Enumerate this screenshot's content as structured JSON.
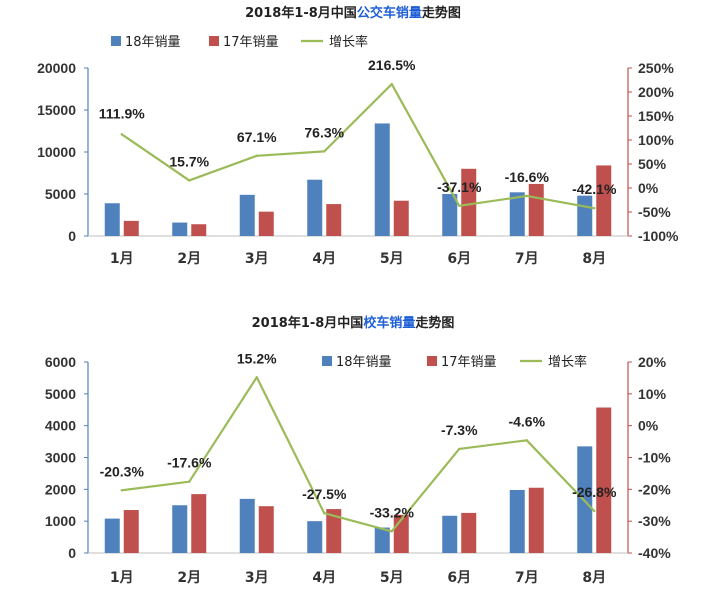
{
  "chart_data": [
    {
      "type": "bar",
      "title_parts": [
        {
          "text": "2018年1-8月中国",
          "color": "#222222"
        },
        {
          "text": "公交车销量",
          "color": "#1f5fd6"
        },
        {
          "text": "走势图",
          "color": "#222222"
        }
      ],
      "categories": [
        "1月",
        "2月",
        "3月",
        "4月",
        "5月",
        "6月",
        "7月",
        "8月"
      ],
      "series": [
        {
          "name": "18年销量",
          "type": "bar",
          "color": "#4f81bd",
          "values": [
            3900,
            1600,
            4900,
            6700,
            13400,
            5000,
            5200,
            4800
          ]
        },
        {
          "name": "17年销量",
          "type": "bar",
          "color": "#c0504d",
          "values": [
            1800,
            1400,
            2900,
            3800,
            4200,
            8000,
            6200,
            8400
          ]
        },
        {
          "name": "增长率",
          "type": "line",
          "axis": "right",
          "color": "#9bbb59",
          "values": [
            111.9,
            15.7,
            67.1,
            76.3,
            216.5,
            -37.1,
            -16.6,
            -42.1
          ]
        }
      ],
      "data_labels": [
        "111.9%",
        "15.7%",
        "67.1%",
        "76.3%",
        "216.5%",
        "-37.1%",
        "-16.6%",
        "-42.1%"
      ],
      "ylim_left": [
        0,
        20000
      ],
      "yticks_left": [
        "0",
        "5000",
        "10000",
        "15000",
        "20000"
      ],
      "ylim_right": [
        -100,
        250
      ],
      "yticks_right": [
        "-100%",
        "-50%",
        "0%",
        "50%",
        "100%",
        "150%",
        "200%",
        "250%"
      ],
      "legend_position": "top"
    },
    {
      "type": "bar",
      "title_parts": [
        {
          "text": "2018年1-8月中国",
          "color": "#222222"
        },
        {
          "text": "校车销量",
          "color": "#1f5fd6"
        },
        {
          "text": "走势图",
          "color": "#222222"
        }
      ],
      "categories": [
        "1月",
        "2月",
        "3月",
        "4月",
        "5月",
        "6月",
        "7月",
        "8月"
      ],
      "series": [
        {
          "name": "18年销量",
          "type": "bar",
          "color": "#4f81bd",
          "values": [
            1080,
            1500,
            1700,
            1000,
            800,
            1170,
            1980,
            3350
          ]
        },
        {
          "name": "17年销量",
          "type": "bar",
          "color": "#c0504d",
          "values": [
            1350,
            1850,
            1470,
            1380,
            1200,
            1260,
            2050,
            4570
          ]
        },
        {
          "name": "增长率",
          "type": "line",
          "axis": "right",
          "color": "#9bbb59",
          "values": [
            -20.3,
            -17.6,
            15.2,
            -27.5,
            -33.2,
            -7.3,
            -4.6,
            -26.8
          ]
        }
      ],
      "data_labels": [
        "-20.3%",
        "-17.6%",
        "15.2%",
        "-27.5%",
        "-33.2%",
        "-7.3%",
        "-4.6%",
        "-26.8%"
      ],
      "ylim_left": [
        0,
        6000
      ],
      "yticks_left": [
        "0",
        "1000",
        "2000",
        "3000",
        "4000",
        "5000",
        "6000"
      ],
      "ylim_right": [
        -40,
        20
      ],
      "yticks_right": [
        "-40%",
        "-30%",
        "-20%",
        "-10%",
        "0%",
        "10%",
        "20%"
      ],
      "legend_position": "top-right"
    }
  ]
}
